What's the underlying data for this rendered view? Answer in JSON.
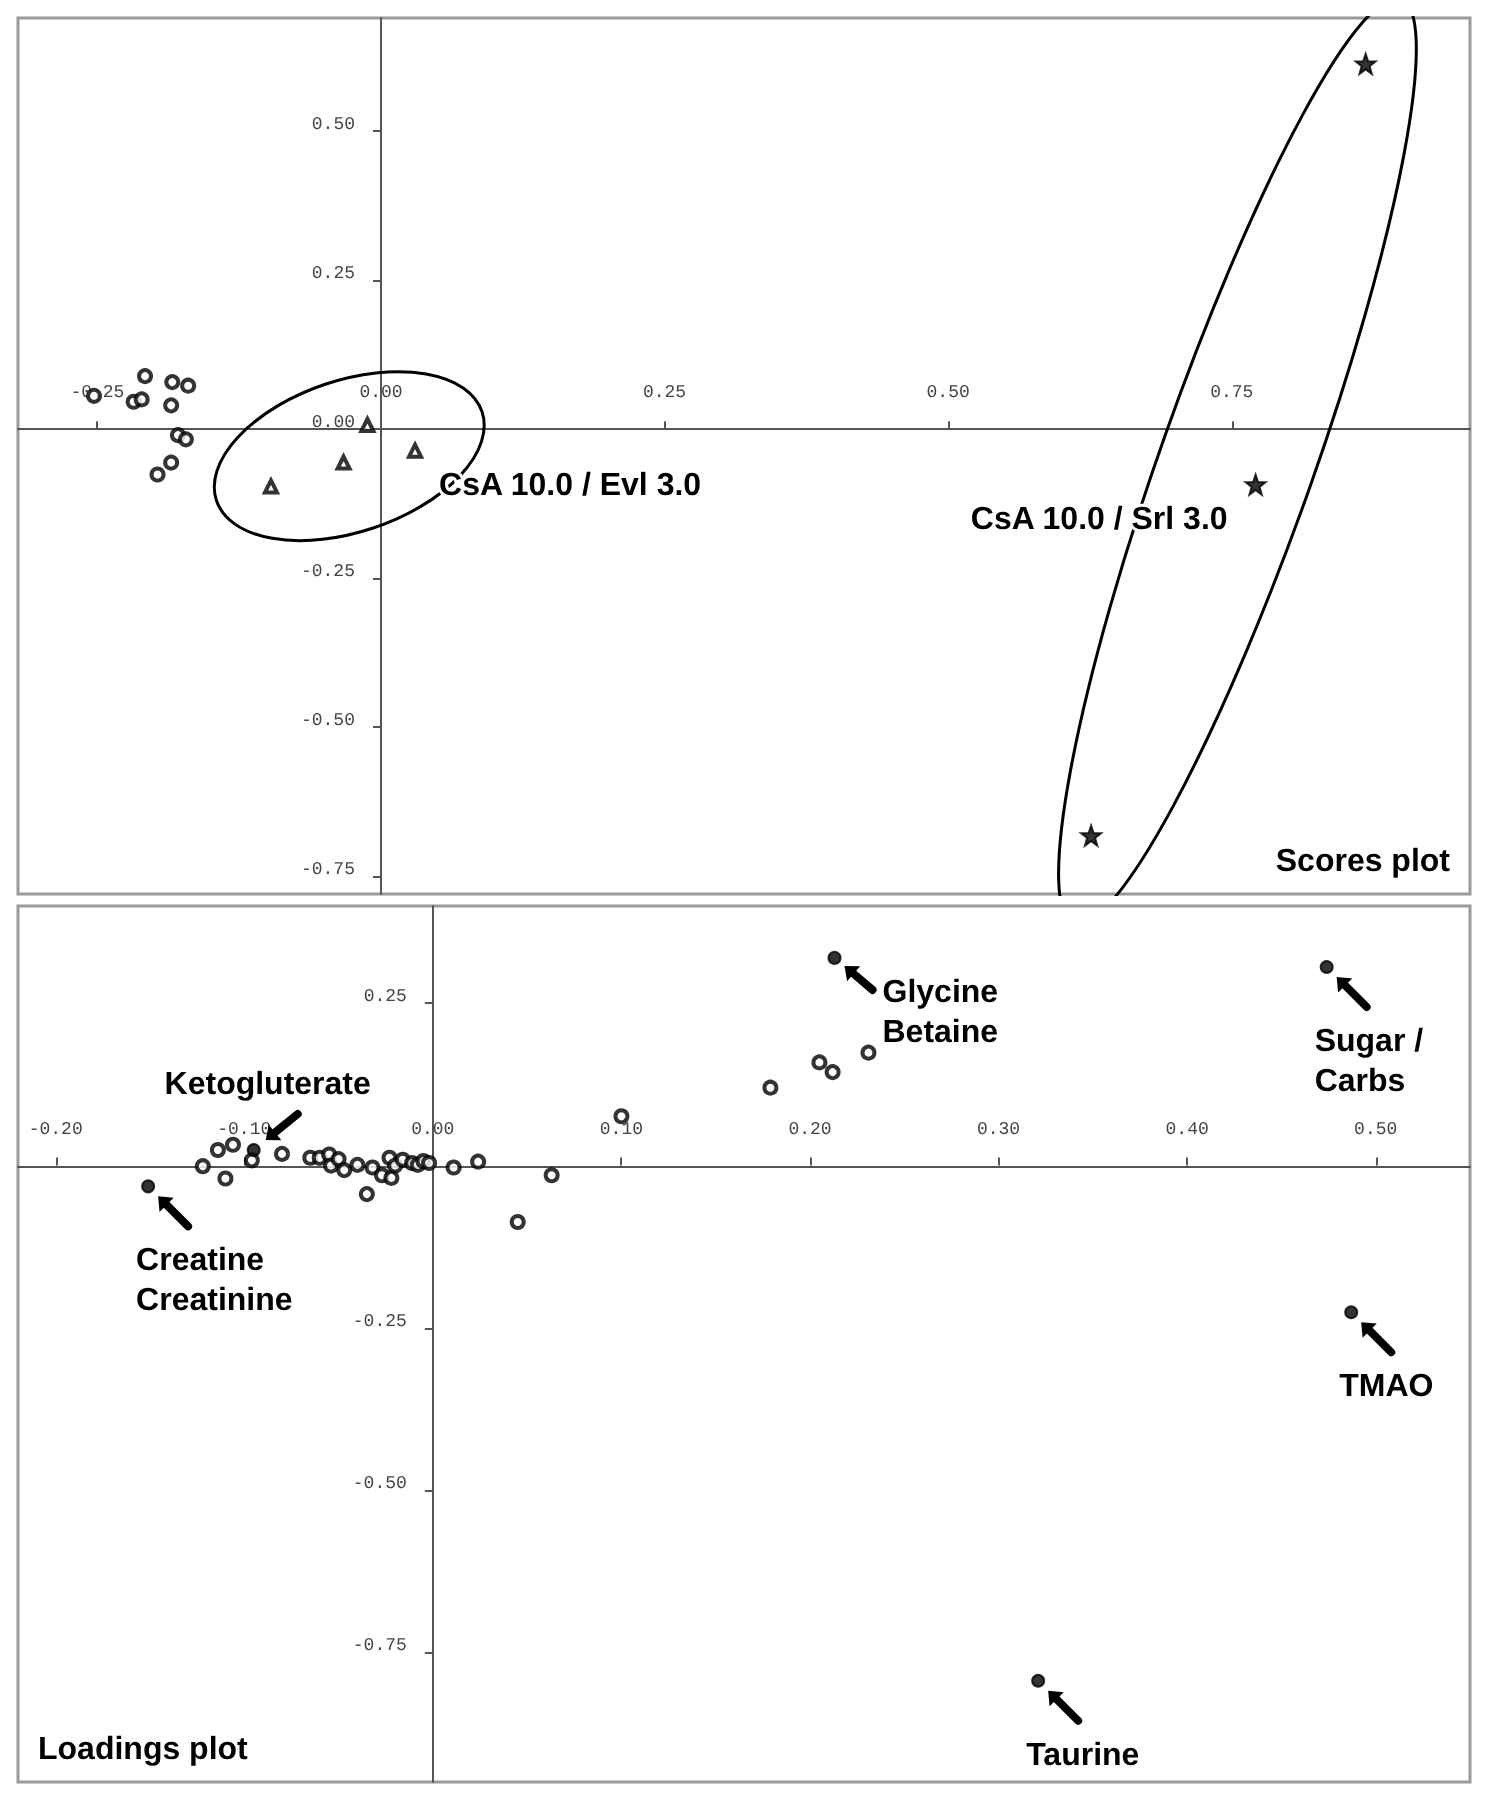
{
  "chart_data": [
    {
      "type": "scatter",
      "title": "Scores plot",
      "xlim": [
        -0.32,
        0.96
      ],
      "ylim": [
        -0.78,
        0.69
      ],
      "xticks": [
        {
          "value": -0.25,
          "label": "-0.25"
        },
        {
          "value": 0,
          "label": "0.00"
        },
        {
          "value": 0.25,
          "label": "0.25"
        },
        {
          "value": 0.5,
          "label": "0.50"
        },
        {
          "value": 0.75,
          "label": "0.75"
        }
      ],
      "yticks": [
        {
          "value": 0.5,
          "label": "0.50"
        },
        {
          "value": 0.25,
          "label": "0.25"
        },
        {
          "value": 0,
          "label": "0.00"
        },
        {
          "value": -0.25,
          "label": "-0.25"
        },
        {
          "value": -0.5,
          "label": "-0.50"
        },
        {
          "value": -0.75,
          "label": "-0.75"
        }
      ],
      "series": [
        {
          "color": "#000000",
          "marker": "circle",
          "x": [
            -0.253,
            -0.218,
            -0.211,
            -0.208,
            -0.184,
            -0.17,
            -0.185,
            -0.179,
            -0.172,
            -0.185,
            -0.197
          ],
          "values": [
            0.056,
            0.046,
            0.05,
            0.089,
            0.079,
            0.073,
            0.04,
            -0.01,
            -0.017,
            -0.056,
            -0.076
          ]
        },
        {
          "name": "CsA 10.0 / Evl 3.0",
          "color": "#000000",
          "marker": "triangle",
          "x": [
            -0.097,
            -0.033,
            -0.012,
            0.03
          ],
          "values": [
            -0.096,
            -0.056,
            0.007,
            -0.036
          ]
        },
        {
          "name": "CsA 10.0 / Srl 3.0",
          "color": "#000000",
          "marker": "star",
          "x": [
            0.868,
            0.771,
            0.626
          ],
          "values": [
            0.613,
            -0.093,
            -0.682
          ]
        }
      ]
    },
    {
      "type": "scatter",
      "title": "Loadings plot",
      "xlim": [
        -0.22,
        0.55
      ],
      "ylim": [
        -0.95,
        0.4
      ],
      "color": "#000000",
      "marker": "circle",
      "xticks": [
        {
          "value": -0.2,
          "label": "-0.20"
        },
        {
          "value": -0.1,
          "label": "-0.10"
        },
        {
          "value": 0,
          "label": "0.00"
        },
        {
          "value": 0.1,
          "label": "0.10"
        },
        {
          "value": 0.2,
          "label": "0.20"
        },
        {
          "value": 0.3,
          "label": "0.30"
        },
        {
          "value": 0.4,
          "label": "0.40"
        },
        {
          "value": 0.5,
          "label": "0.50"
        }
      ],
      "yticks": [
        {
          "value": 0.25,
          "label": "0.25"
        },
        {
          "value": 0,
          "label": null
        },
        {
          "value": -0.25,
          "label": "-0.25"
        },
        {
          "value": -0.5,
          "label": "-0.50"
        },
        {
          "value": -0.75,
          "label": "-0.75"
        }
      ],
      "x": [
        -0.122,
        -0.114,
        -0.106,
        -0.11,
        -0.096,
        -0.08,
        -0.065,
        -0.06,
        -0.055,
        -0.054,
        -0.05,
        -0.047,
        -0.042,
        -0.04,
        -0.035,
        -0.032,
        -0.027,
        -0.023,
        -0.022,
        -0.02,
        -0.016,
        -0.011,
        -0.008,
        -0.005,
        -0.002,
        0.011,
        0.024,
        0.063,
        0.045,
        0.1,
        0.179,
        0.205,
        0.212,
        0.231,
        -0.095,
        -0.151,
        0.213,
        0.474,
        0.487,
        0.321
      ],
      "values": [
        -0.001,
        0.024,
        0.032,
        -0.02,
        0.008,
        0.018,
        0.012,
        0.012,
        0.017,
        0,
        0.01,
        -0.007,
        null,
        0.001,
        -0.044,
        -0.003,
        -0.015,
        0.012,
        -0.019,
        0,
        0.009,
        0.004,
        0.001,
        0.007,
        0.004,
        -0.003,
        0.006,
        -0.015,
        -0.087,
        0.076,
        0.12,
        0.159,
        0.144,
        0.174,
        0.024,
        -0.032,
        0.32,
        0.306,
        -0.226,
        -0.794
      ],
      "annotations": [
        {
          "text": "Ketogluterate",
          "x": -0.095,
          "y": 0.024
        },
        {
          "text": "Creatine\nCreatinine",
          "x": -0.151,
          "y": -0.032
        },
        {
          "text": "Glycine\nBetaine",
          "x": 0.213,
          "y": 0.32
        },
        {
          "text": "Sugar /\nCarbs",
          "x": 0.474,
          "y": 0.306
        },
        {
          "text": "TMAO",
          "x": 0.487,
          "y": -0.226
        },
        {
          "text": "Taurine",
          "x": 0.321,
          "y": -0.794
        }
      ]
    }
  ]
}
